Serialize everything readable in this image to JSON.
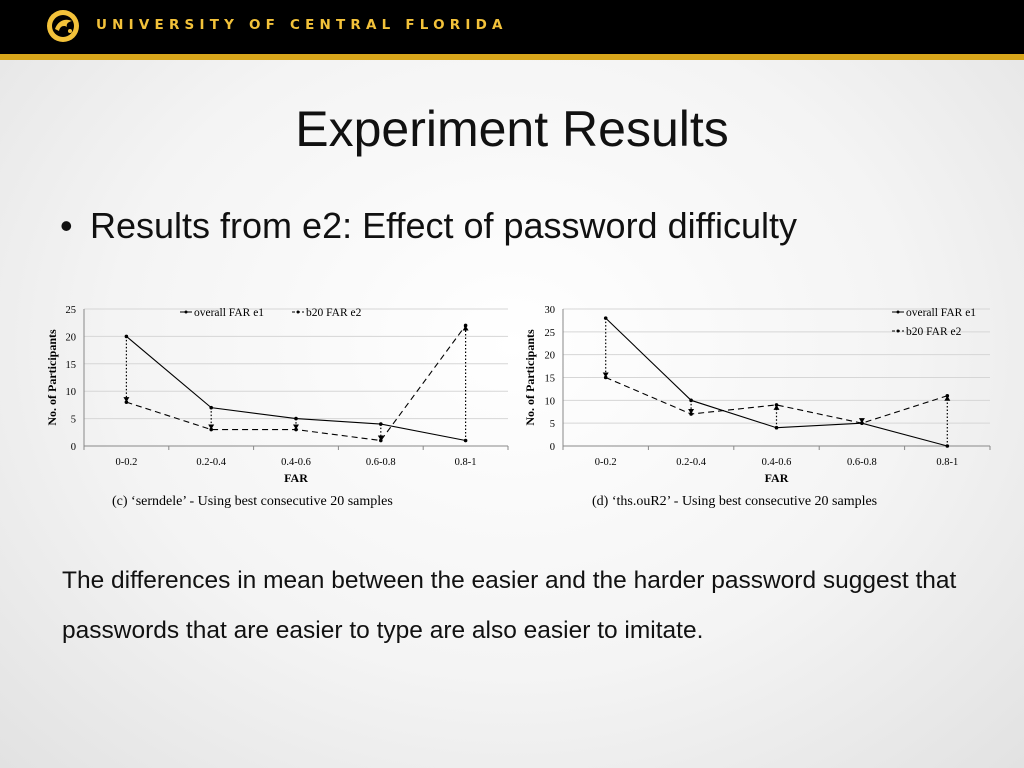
{
  "header": {
    "university_name": "UNIVERSITY OF CENTRAL FLORIDA",
    "brand_colors": {
      "bar": "#000000",
      "gold": "#d8a61b",
      "text": "#f3c23a"
    }
  },
  "slide": {
    "title": "Experiment Results",
    "bullet": "Results from e2: Effect of password difficulty",
    "body": "The differences in mean between the easier and the harder password suggest that passwords that are easier to type are also easier to imitate."
  },
  "chart_data": [
    {
      "type": "line",
      "caption": "(c)  ‘serndele’ - Using best consecutive 20 samples",
      "xlabel": "FAR",
      "ylabel": "No. of Participants",
      "categories": [
        "0-0.2",
        "0.2-0.4",
        "0.4-0.6",
        "0.6-0.8",
        "0.8-1"
      ],
      "ylim": [
        0,
        25
      ],
      "yticks": [
        0,
        5,
        10,
        15,
        20,
        25
      ],
      "grid": true,
      "legend_position": "top-center",
      "series": [
        {
          "name": "overall FAR e1",
          "style": "solid",
          "values": [
            20,
            7,
            5,
            4,
            1
          ]
        },
        {
          "name": "b20 FAR e2",
          "style": "dashed",
          "values": [
            8,
            3,
            3,
            1,
            22
          ]
        }
      ]
    },
    {
      "type": "line",
      "caption": "(d)  ‘ths.ouR2’ - Using best consecutive 20 samples",
      "xlabel": "FAR",
      "ylabel": "No. of Participants",
      "categories": [
        "0-0.2",
        "0.2-0.4",
        "0.4-0.6",
        "0.6-0.8",
        "0.8-1"
      ],
      "ylim": [
        0,
        30
      ],
      "yticks": [
        0,
        5,
        10,
        15,
        20,
        25,
        30
      ],
      "grid": true,
      "legend_position": "top-right",
      "series": [
        {
          "name": "overall FAR e1",
          "style": "solid",
          "values": [
            28,
            10,
            4,
            5,
            0
          ]
        },
        {
          "name": "b20 FAR e2",
          "style": "dashed",
          "values": [
            15,
            7,
            9,
            5,
            11
          ]
        }
      ]
    }
  ]
}
